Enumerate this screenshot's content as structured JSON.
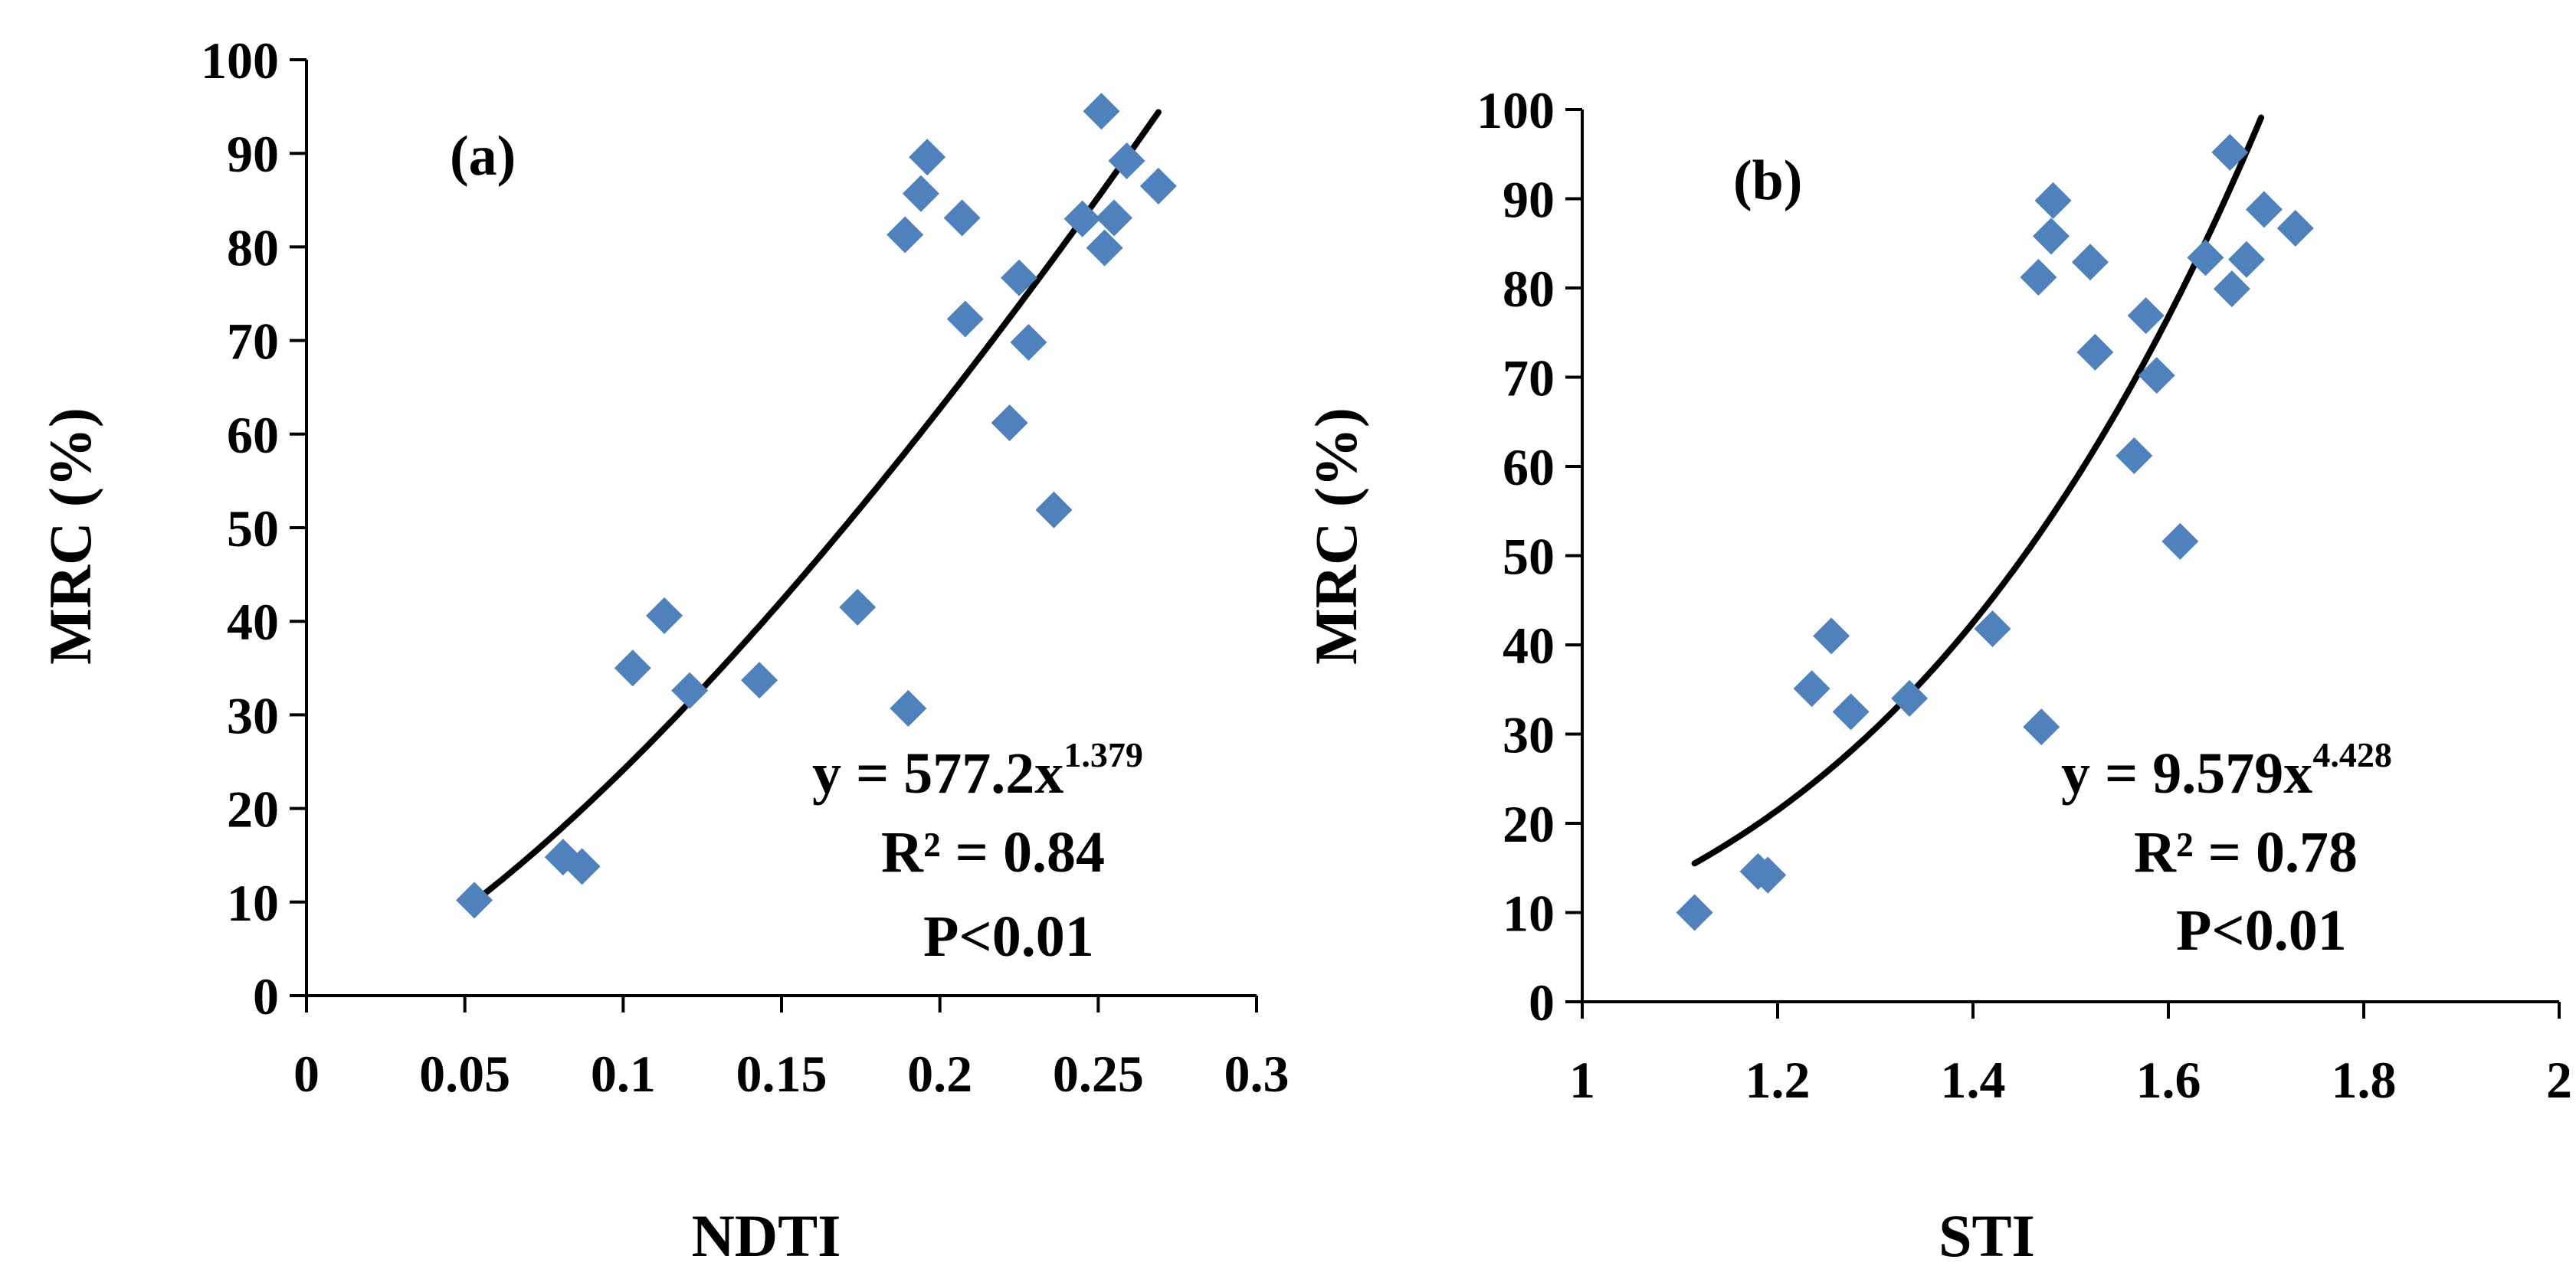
{
  "colors": {
    "marker": "#4F81BD",
    "trend": "#000000",
    "axis": "#000000"
  },
  "chart_data": [
    {
      "type": "scatter",
      "panel_label": "(a)",
      "xlabel": "NDTI",
      "ylabel": "MRC (%)",
      "xlim": [
        0,
        0.3
      ],
      "ylim": [
        0,
        100
      ],
      "x_ticks": [
        0,
        0.05,
        0.1,
        0.15,
        0.2,
        0.25,
        0.3
      ],
      "x_tick_labels": [
        "0",
        "0.05",
        "0.1",
        "0.15",
        "0.2",
        "0.25",
        "0.3"
      ],
      "y_ticks": [
        0,
        10,
        20,
        30,
        40,
        50,
        60,
        70,
        80,
        90,
        100
      ],
      "y_tick_labels": [
        "0",
        "10",
        "20",
        "30",
        "40",
        "50",
        "60",
        "70",
        "80",
        "90",
        "100"
      ],
      "points": [
        [
          0.053,
          10.2
        ],
        [
          0.081,
          14.8
        ],
        [
          0.087,
          13.8
        ],
        [
          0.103,
          35.0
        ],
        [
          0.113,
          40.6
        ],
        [
          0.121,
          32.6
        ],
        [
          0.143,
          33.7
        ],
        [
          0.174,
          41.5
        ],
        [
          0.19,
          30.7
        ],
        [
          0.189,
          81.3
        ],
        [
          0.194,
          85.7
        ],
        [
          0.196,
          89.6
        ],
        [
          0.207,
          83.1
        ],
        [
          0.208,
          72.3
        ],
        [
          0.222,
          61.2
        ],
        [
          0.225,
          76.7
        ],
        [
          0.228,
          69.8
        ],
        [
          0.236,
          51.9
        ],
        [
          0.245,
          83.0
        ],
        [
          0.251,
          94.5
        ],
        [
          0.252,
          79.9
        ],
        [
          0.255,
          83.1
        ],
        [
          0.259,
          89.2
        ],
        [
          0.269,
          86.5
        ]
      ],
      "trendline": {
        "type": "power",
        "a": 577.2,
        "b": 1.379,
        "x_range": [
          0.053,
          0.269
        ]
      },
      "equation": {
        "lhs": "y = 577.2x",
        "exponent": "1.379"
      },
      "r_squared": "R² = 0.84",
      "p_value": "P<0.01"
    },
    {
      "type": "scatter",
      "panel_label": "(b)",
      "xlabel": "STI",
      "ylabel": "MRC (%)",
      "xlim": [
        1,
        2
      ],
      "ylim": [
        0,
        100
      ],
      "x_ticks": [
        1,
        1.2,
        1.4,
        1.6,
        1.8,
        2
      ],
      "x_tick_labels": [
        "1",
        "1.2",
        "1.4",
        "1.6",
        "1.8",
        "2"
      ],
      "y_ticks": [
        0,
        10,
        20,
        30,
        40,
        50,
        60,
        70,
        80,
        90,
        100
      ],
      "y_tick_labels": [
        "0",
        "10",
        "20",
        "30",
        "40",
        "50",
        "60",
        "70",
        "80",
        "90",
        "100"
      ],
      "points": [
        [
          1.115,
          10.0
        ],
        [
          1.18,
          14.6
        ],
        [
          1.19,
          14.2
        ],
        [
          1.235,
          35.1
        ],
        [
          1.255,
          41.0
        ],
        [
          1.275,
          32.5
        ],
        [
          1.335,
          34.0
        ],
        [
          1.42,
          41.8
        ],
        [
          1.47,
          30.8
        ],
        [
          1.467,
          81.2
        ],
        [
          1.48,
          85.8
        ],
        [
          1.482,
          89.8
        ],
        [
          1.52,
          82.9
        ],
        [
          1.525,
          72.8
        ],
        [
          1.565,
          61.2
        ],
        [
          1.577,
          76.9
        ],
        [
          1.588,
          70.2
        ],
        [
          1.612,
          51.6
        ],
        [
          1.638,
          83.4
        ],
        [
          1.663,
          95.2
        ],
        [
          1.665,
          79.9
        ],
        [
          1.68,
          83.2
        ],
        [
          1.698,
          88.8
        ],
        [
          1.73,
          86.7
        ]
      ],
      "trendline": {
        "type": "power",
        "a": 9.579,
        "b": 4.428,
        "x_range": [
          1.115,
          1.695
        ]
      },
      "equation": {
        "lhs": "y = 9.579x",
        "exponent": "4.428"
      },
      "r_squared": "R² = 0.78",
      "p_value": "P<0.01"
    }
  ]
}
